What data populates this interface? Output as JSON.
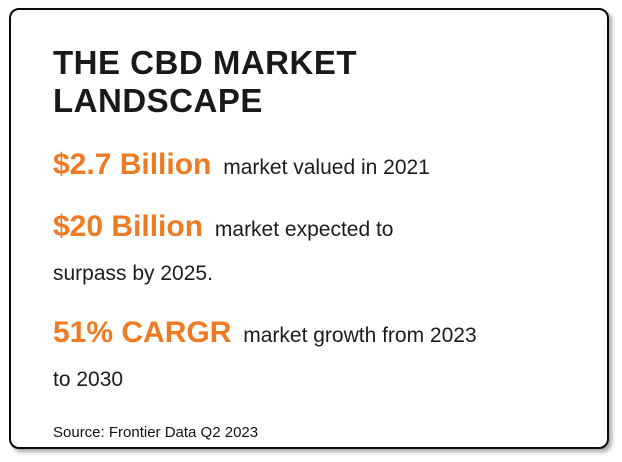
{
  "card": {
    "title": "THE CBD MARKET LANDSCAPE",
    "stats": [
      {
        "value": "$2.7 Billion",
        "desc": "market valued in 2021"
      },
      {
        "value": "$20 Billion",
        "desc": "market expected to\nsurpass by 2025."
      },
      {
        "value": "51% CARGR",
        "desc": "market growth from 2023\nto 2030"
      }
    ],
    "source": "Source: Frontier Data Q2 2023",
    "accent_color": "#ee7b23",
    "text_color": "#1c1c1c"
  }
}
